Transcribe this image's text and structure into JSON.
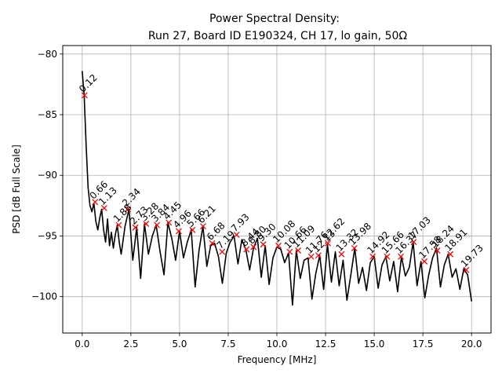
{
  "chart_data": {
    "type": "line",
    "title_line1": "Power Spectral Density:",
    "title_line2": "Run 27, Board ID E190324, CH 17, lo gain, 50Ω",
    "xlabel": "Frequency [MHz]",
    "ylabel": "PSD [dB Full Scale]",
    "xlim": [
      -1.0,
      21.0
    ],
    "ylim": [
      -103.0,
      -79.3
    ],
    "xticks": [
      0.0,
      2.5,
      5.0,
      7.5,
      10.0,
      12.5,
      15.0,
      17.5,
      20.0
    ],
    "xtick_labels": [
      "0.0",
      "2.5",
      "5.0",
      "7.5",
      "10.0",
      "12.5",
      "15.0",
      "17.5",
      "20.0"
    ],
    "yticks": [
      -100,
      -95,
      -90,
      -85,
      -80
    ],
    "ytick_labels": [
      "−100",
      "−95",
      "−90",
      "−85",
      "−80"
    ],
    "grid": true,
    "line_color": "#000000",
    "marker_color": "#ff0000",
    "psd_series": {
      "name": "PSD",
      "x": [
        0.0,
        0.1,
        0.2,
        0.3,
        0.4,
        0.5,
        0.6,
        0.7,
        0.8,
        0.9,
        1.0,
        1.1,
        1.2,
        1.3,
        1.4,
        1.5,
        1.6,
        1.7,
        1.8,
        1.9,
        2.0,
        2.2,
        2.4,
        2.6,
        2.8,
        3.0,
        3.2,
        3.4,
        3.6,
        3.8,
        4.0,
        4.2,
        4.4,
        4.6,
        4.8,
        5.0,
        5.2,
        5.4,
        5.6,
        5.8,
        6.0,
        6.2,
        6.4,
        6.6,
        6.8,
        7.0,
        7.2,
        7.4,
        7.6,
        7.8,
        8.0,
        8.2,
        8.4,
        8.6,
        8.8,
        9.0,
        9.2,
        9.4,
        9.6,
        9.8,
        10.0,
        10.2,
        10.4,
        10.6,
        10.8,
        11.0,
        11.2,
        11.4,
        11.6,
        11.8,
        12.0,
        12.2,
        12.4,
        12.6,
        12.8,
        13.0,
        13.2,
        13.4,
        13.6,
        13.8,
        14.0,
        14.2,
        14.4,
        14.6,
        14.8,
        15.0,
        15.2,
        15.4,
        15.6,
        15.8,
        16.0,
        16.2,
        16.4,
        16.6,
        16.8,
        17.0,
        17.2,
        17.4,
        17.6,
        17.8,
        18.0,
        18.2,
        18.4,
        18.6,
        18.8,
        19.0,
        19.2,
        19.4,
        19.6,
        19.8,
        20.0
      ],
      "y": [
        -81.4,
        -83.4,
        -87.5,
        -91.0,
        -92.5,
        -93.0,
        -92.3,
        -93.8,
        -94.5,
        -93.5,
        -92.8,
        -94.5,
        -95.5,
        -93.6,
        -95.8,
        -94.7,
        -96.0,
        -94.9,
        -94.1,
        -95.5,
        -96.5,
        -94.2,
        -92.8,
        -97.0,
        -94.3,
        -98.5,
        -94.0,
        -96.5,
        -95.0,
        -94.1,
        -96.3,
        -98.2,
        -93.9,
        -95.2,
        -97.0,
        -94.6,
        -96.8,
        -95.5,
        -94.5,
        -99.2,
        -96.2,
        -94.2,
        -97.5,
        -95.8,
        -95.6,
        -96.7,
        -98.9,
        -96.4,
        -95.5,
        -95.0,
        -97.3,
        -95.3,
        -96.1,
        -97.8,
        -96.0,
        -95.2,
        -98.4,
        -95.8,
        -99.0,
        -96.8,
        -95.9,
        -96.1,
        -97.2,
        -96.4,
        -100.7,
        -96.2,
        -98.5,
        -97.0,
        -96.8,
        -100.2,
        -98.1,
        -96.6,
        -99.4,
        -95.7,
        -98.8,
        -96.3,
        -99.1,
        -97.0,
        -100.3,
        -98.2,
        -96.0,
        -98.9,
        -97.6,
        -99.5,
        -97.2,
        -96.7,
        -99.3,
        -97.4,
        -96.7,
        -98.7,
        -97.1,
        -99.6,
        -96.7,
        -98.3,
        -97.6,
        -95.5,
        -99.1,
        -97.1,
        -100.1,
        -98.2,
        -96.8,
        -96.0,
        -99.2,
        -97.4,
        -96.5,
        -98.4,
        -97.7,
        -99.4,
        -97.7,
        -98.2,
        -100.4
      ]
    },
    "peaks": {
      "x": [
        0.12,
        0.66,
        1.13,
        1.88,
        2.34,
        2.73,
        3.28,
        3.84,
        4.45,
        4.96,
        5.66,
        6.21,
        6.68,
        7.19,
        7.93,
        8.44,
        8.8,
        9.3,
        10.08,
        10.66,
        11.09,
        11.76,
        12.13,
        12.62,
        13.32,
        13.98,
        14.92,
        15.66,
        16.37,
        17.03,
        17.58,
        18.24,
        18.91,
        19.73
      ],
      "y": [
        -83.4,
        -92.2,
        -92.7,
        -94.1,
        -92.8,
        -94.3,
        -94.0,
        -94.1,
        -93.9,
        -94.6,
        -94.5,
        -94.2,
        -95.6,
        -96.3,
        -94.9,
        -96.1,
        -95.9,
        -95.7,
        -95.8,
        -96.3,
        -96.2,
        -96.7,
        -96.6,
        -95.6,
        -96.5,
        -96.0,
        -96.7,
        -96.7,
        -96.7,
        -95.5,
        -97.1,
        -96.2,
        -96.5,
        -97.8
      ],
      "labels": [
        "0.12",
        "0.66",
        "1.13",
        "1.88",
        "2.34",
        "2.73",
        "3.28",
        "3.84",
        "4.45",
        "4.96",
        "5.66",
        "6.21",
        "6.68",
        "7.19",
        "7.93",
        "8.44",
        "8.80",
        "9.30",
        "10.08",
        "10.66",
        "11.09",
        "11.76",
        "12.13",
        "12.62",
        "13.32",
        "13.98",
        "14.92",
        "15.66",
        "16.37",
        "17.03",
        "17.58",
        "18.24",
        "18.91",
        "19.73"
      ]
    }
  }
}
